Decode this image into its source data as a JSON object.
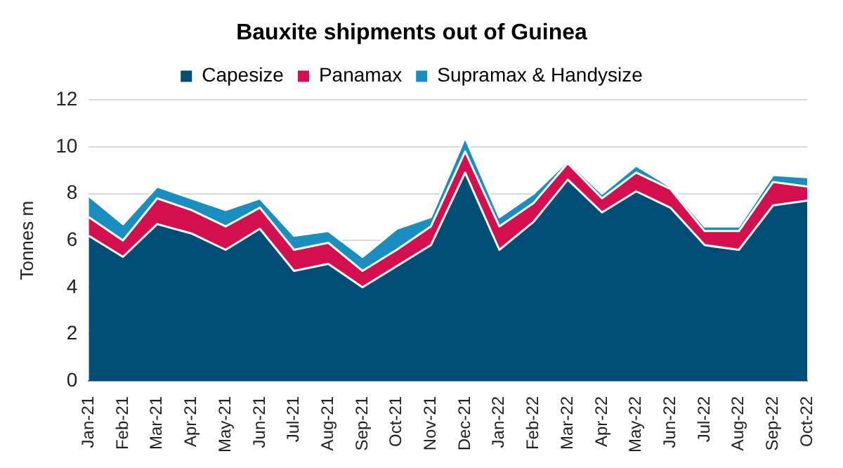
{
  "chart_data": {
    "type": "area",
    "title": "Bauxite shipments out of Guinea",
    "ylabel": "Tonnes m",
    "stacked": true,
    "categories": [
      "Jan-21",
      "Feb-21",
      "Mar-21",
      "Apr-21",
      "May-21",
      "Jun-21",
      "Jul-21",
      "Aug-21",
      "Sep-21",
      "Oct-21",
      "Nov-21",
      "Dec-21",
      "Jan-22",
      "Feb-22",
      "Mar-22",
      "Apr-22",
      "May-22",
      "Jun-22",
      "Jul-22",
      "Aug-22",
      "Sep-22",
      "Oct-22"
    ],
    "series": [
      {
        "name": "Capesize",
        "color": "#004e78",
        "values": [
          6.2,
          5.3,
          6.7,
          6.3,
          5.6,
          6.5,
          4.7,
          5.0,
          4.0,
          4.9,
          5.8,
          8.9,
          5.6,
          6.8,
          8.6,
          7.2,
          8.1,
          7.4,
          5.8,
          5.6,
          7.5,
          7.7
        ]
      },
      {
        "name": "Panamax",
        "color": "#d40f4f",
        "values": [
          0.8,
          0.7,
          1.1,
          1.0,
          1.0,
          0.9,
          0.9,
          0.9,
          0.7,
          0.7,
          0.8,
          0.9,
          1.0,
          0.8,
          0.7,
          0.6,
          0.8,
          0.8,
          0.6,
          0.8,
          1.0,
          0.6
        ]
      },
      {
        "name": "Supramax & Handysize",
        "color": "#1a8fbf",
        "values": [
          0.9,
          0.7,
          0.5,
          0.5,
          0.7,
          0.4,
          0.6,
          0.5,
          0.6,
          0.9,
          0.4,
          0.6,
          0.4,
          0.4,
          0.1,
          0.2,
          0.3,
          0.1,
          0.2,
          0.2,
          0.3,
          0.4
        ]
      }
    ],
    "ylim": [
      0,
      12
    ],
    "yticks": [
      0,
      2,
      4,
      6,
      8,
      10,
      12
    ],
    "grid": "y",
    "legend": "top"
  }
}
